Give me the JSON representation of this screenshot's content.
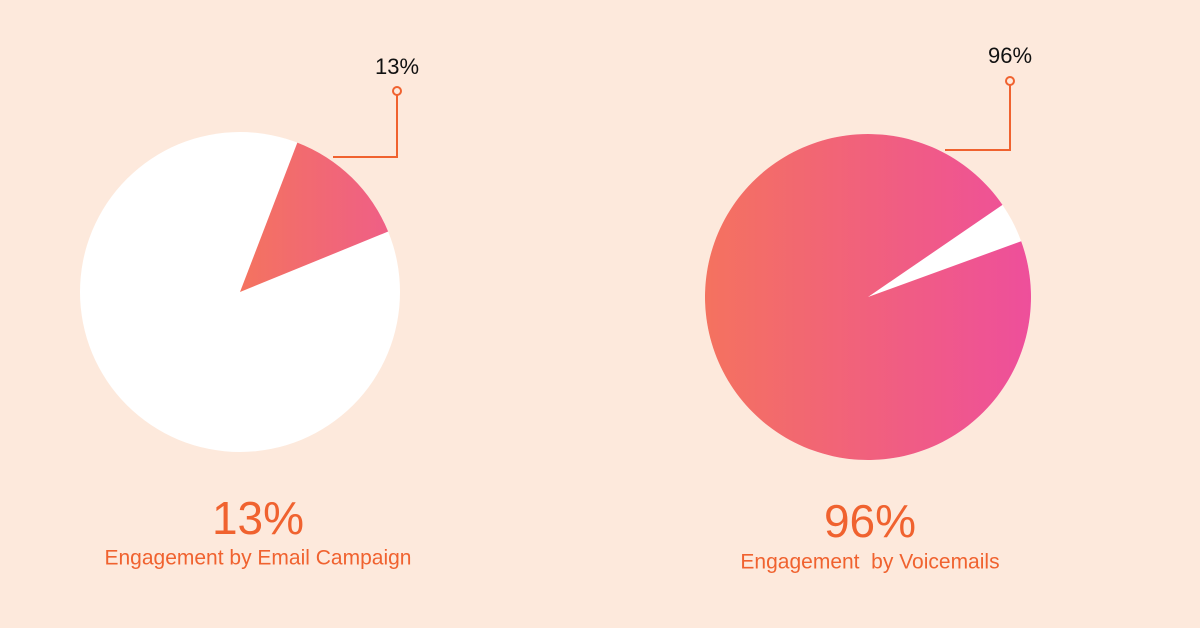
{
  "chart_data": [
    {
      "type": "pie",
      "values": [
        13
      ],
      "value_labels": [
        "13%"
      ],
      "caption": "Engagement by Email Campaign",
      "color": [
        "#f4735f",
        "#ef5f86"
      ],
      "rest_color": "#ffffff"
    },
    {
      "type": "pie",
      "values": [
        96
      ],
      "value_labels": [
        "96%"
      ],
      "caption": "Engagement  by Voicemails",
      "color": [
        "#f4725f",
        "#ee4f9b"
      ],
      "rest_color": "#ffffff"
    }
  ]
}
